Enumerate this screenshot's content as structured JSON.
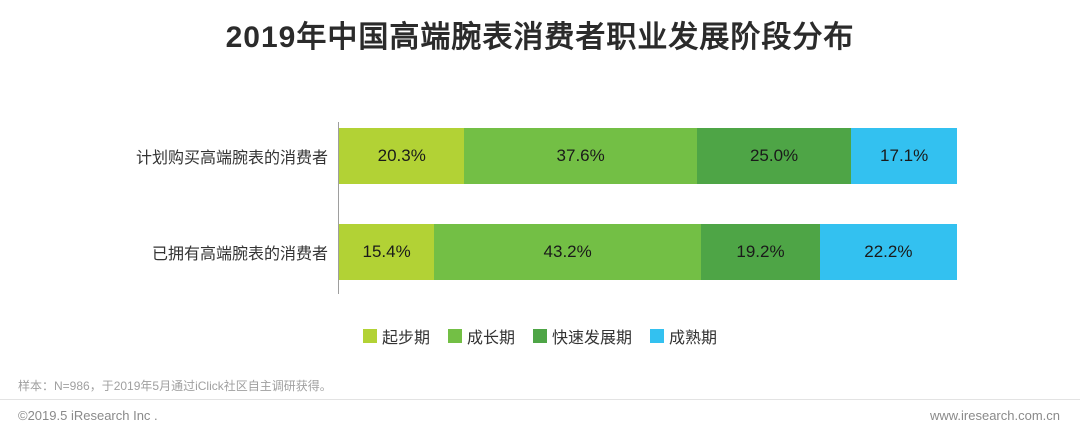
{
  "title": "2019年中国高端腕表消费者职业发展阶段分布",
  "chart_data": {
    "type": "bar",
    "subtype": "horizontal-stacked",
    "categories": [
      "计划购买高端腕表的消费者",
      "已拥有高端腕表的消费者"
    ],
    "series": [
      {
        "key": "start",
        "name": "起步期",
        "color": "#b2d235",
        "values": [
          20.3,
          15.4
        ]
      },
      {
        "key": "growth",
        "name": "成长期",
        "color": "#73bf45",
        "values": [
          37.6,
          43.2
        ]
      },
      {
        "key": "rapid",
        "name": "快速发展期",
        "color": "#4ea546",
        "values": [
          25.0,
          19.2
        ]
      },
      {
        "key": "mature",
        "name": "成熟期",
        "color": "#33c1f0",
        "values": [
          17.1,
          22.2
        ]
      }
    ],
    "value_suffix": "%",
    "xlim": [
      0,
      100
    ],
    "grid": false,
    "legend_position": "bottom"
  },
  "footnote": "样本：N=986，于2019年5月通过iClick社区自主调研获得。",
  "footer": {
    "copyright": "©2019.5 iResearch Inc .",
    "website": "www.iresearch.com.cn"
  }
}
